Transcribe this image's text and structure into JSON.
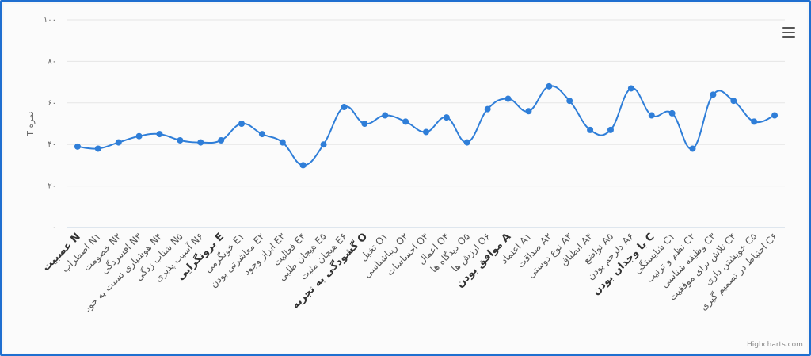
{
  "chart_data": {
    "type": "line",
    "ylabel": "T نمره",
    "ylim": [
      0,
      100
    ],
    "yticks": [
      "۰",
      "۲۰",
      "۴۰",
      "۶۰",
      "۸۰",
      "۱۰۰"
    ],
    "ytick_values": [
      0,
      20,
      40,
      60,
      80,
      100
    ],
    "line_color": "#2f7ed8",
    "categories": [
      {
        "label": "عصبیت N",
        "bold": true
      },
      {
        "label": "اضطراب N۱",
        "bold": false
      },
      {
        "label": "خصومت N۲",
        "bold": false
      },
      {
        "label": "افسردگی N۳",
        "bold": false
      },
      {
        "label": "هوشیاری نسبت به خود N۴",
        "bold": false
      },
      {
        "label": "شتاب زدگی N۵",
        "bold": false
      },
      {
        "label": "آسیب پذیری N۶",
        "bold": false
      },
      {
        "label": "برونگرایی E",
        "bold": true
      },
      {
        "label": "خونگرمی E۱",
        "bold": false
      },
      {
        "label": "معاشرتی بودن E۲",
        "bold": false
      },
      {
        "label": "ابراز وجود E۳",
        "bold": false
      },
      {
        "label": "فعالیت E۴",
        "bold": false
      },
      {
        "label": "هیجان طلبی E۵",
        "bold": false
      },
      {
        "label": "هیجان مثبت E۶",
        "bold": false
      },
      {
        "label": "گشودگی به تجربه O",
        "bold": true
      },
      {
        "label": "تخیل O۱",
        "bold": false
      },
      {
        "label": "زیباشناسی O۲",
        "bold": false
      },
      {
        "label": "احساسات O۳",
        "bold": false
      },
      {
        "label": "اعمال O۴",
        "bold": false
      },
      {
        "label": "دیدگاه ها O۵",
        "bold": false
      },
      {
        "label": "ارزش ها O۶",
        "bold": false
      },
      {
        "label": "موافق بودن A",
        "bold": true
      },
      {
        "label": "اعتماد A۱",
        "bold": false
      },
      {
        "label": "صداقت A۲",
        "bold": false
      },
      {
        "label": "نوع دوستی A۳",
        "bold": false
      },
      {
        "label": "انطباق A۴",
        "bold": false
      },
      {
        "label": "تواضع A۵",
        "bold": false
      },
      {
        "label": "دلرحم بودن A۶",
        "bold": false
      },
      {
        "label": "با وجدان بودن C",
        "bold": true
      },
      {
        "label": "شایستگی C۱",
        "bold": false
      },
      {
        "label": "نظم و ترتیب C۲",
        "bold": false
      },
      {
        "label": "وظیفه شناسی C۳",
        "bold": false
      },
      {
        "label": "تلاش برای موفقیت C۴",
        "bold": false
      },
      {
        "label": "خویشتن داری C۵",
        "bold": false
      },
      {
        "label": "احتیاط در تصمیم گیری C۶",
        "bold": false
      }
    ],
    "values": [
      39,
      38,
      41,
      44,
      45,
      42,
      41,
      42,
      50,
      45,
      41,
      30,
      40,
      58,
      50,
      54,
      51,
      46,
      53,
      41,
      57,
      62,
      56,
      68,
      61,
      47,
      47,
      67,
      54,
      55,
      38,
      64,
      61,
      51,
      54
    ]
  },
  "menu_icon": "hamburger-menu-icon",
  "credits": "Highcharts.com"
}
